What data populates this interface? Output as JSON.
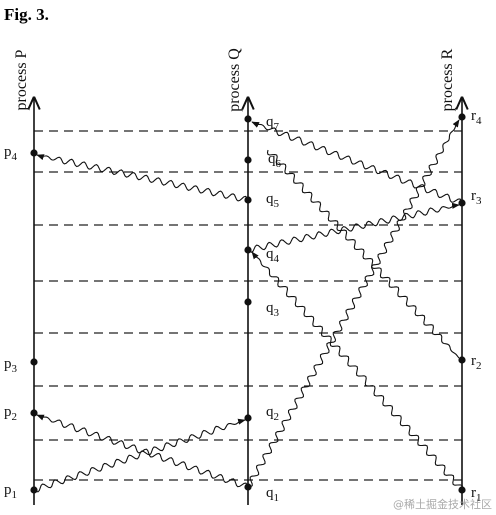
{
  "title": "Fig. 3.",
  "processes": [
    "process P",
    "process Q",
    "process R"
  ],
  "events": [
    {
      "name": "p",
      "sub": "1"
    },
    {
      "name": "p",
      "sub": "2"
    },
    {
      "name": "p",
      "sub": "3"
    },
    {
      "name": "p",
      "sub": "4"
    },
    {
      "name": "q",
      "sub": "1"
    },
    {
      "name": "q",
      "sub": "2"
    },
    {
      "name": "q",
      "sub": "3"
    },
    {
      "name": "q",
      "sub": "4"
    },
    {
      "name": "q",
      "sub": "5"
    },
    {
      "name": "q",
      "sub": "6"
    },
    {
      "name": "q",
      "sub": "7"
    },
    {
      "name": "r",
      "sub": "1"
    },
    {
      "name": "r",
      "sub": "2"
    },
    {
      "name": "r",
      "sub": "3"
    },
    {
      "name": "r",
      "sub": "4"
    }
  ],
  "watermark": "@稀土掘金技术社区"
}
